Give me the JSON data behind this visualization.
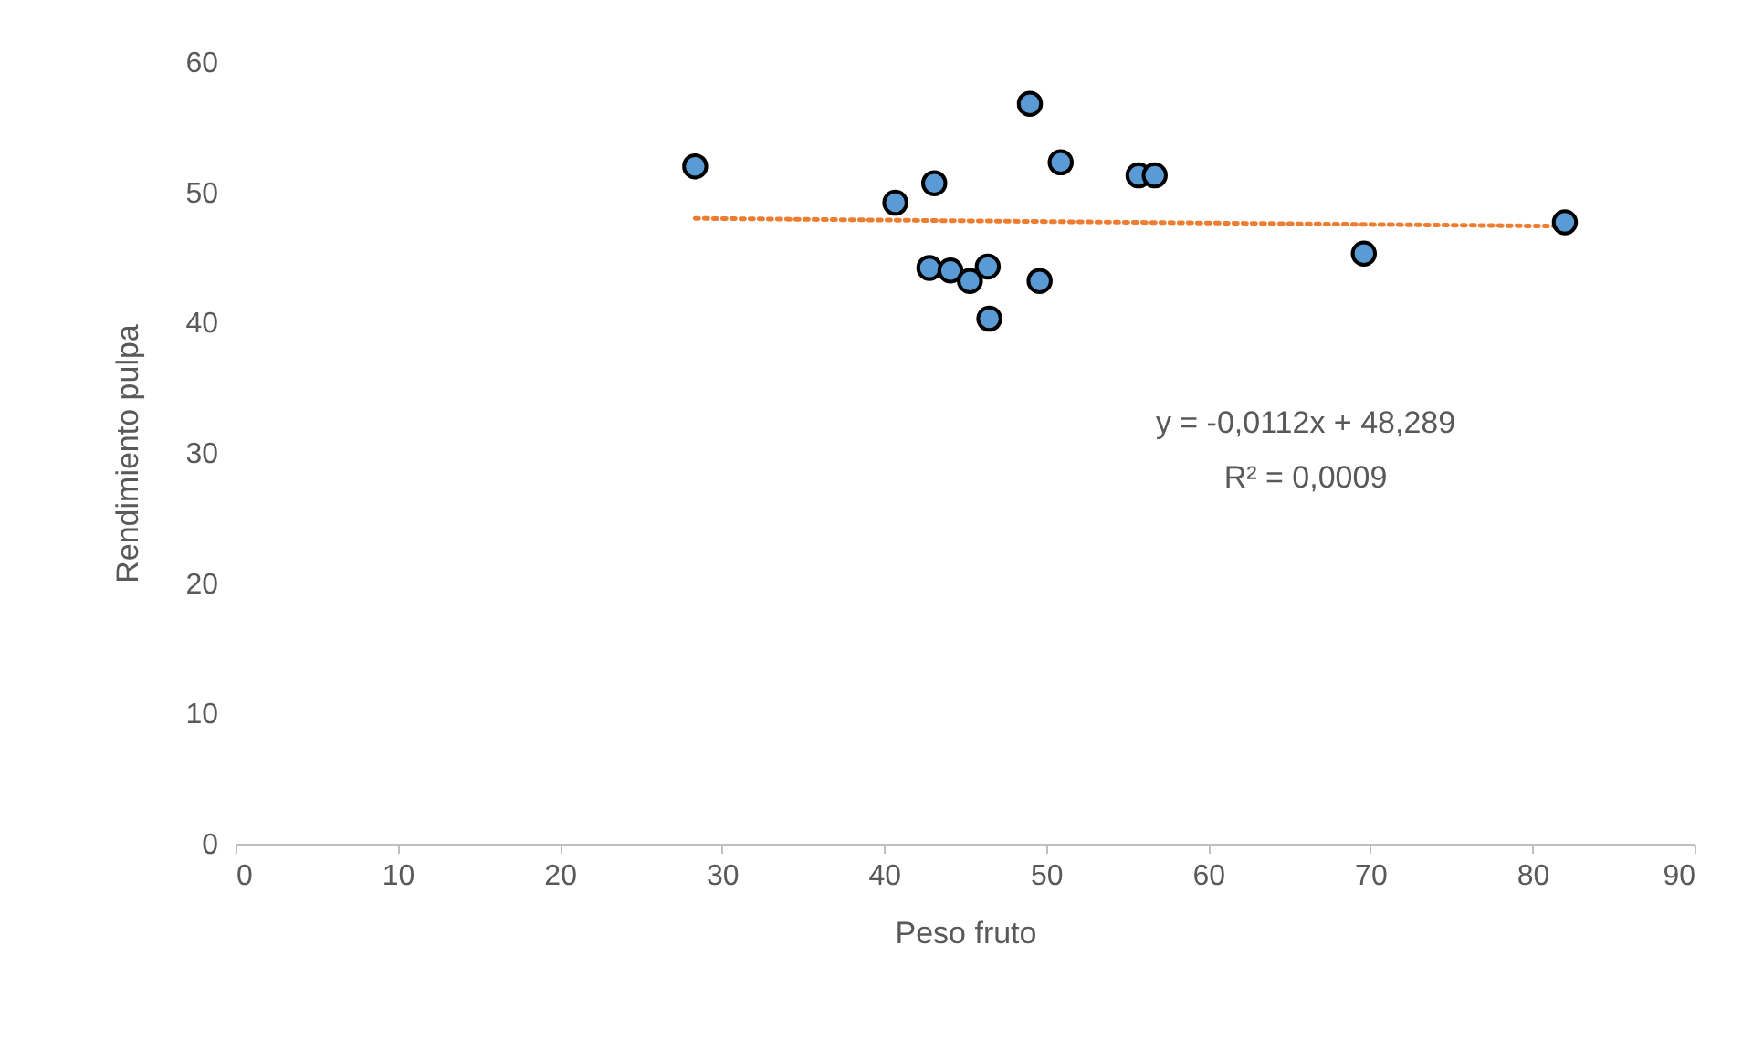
{
  "chart_data": {
    "type": "scatter",
    "xlabel": "Peso fruto",
    "ylabel": "Rendimiento pulpa",
    "xlim": [
      0,
      90
    ],
    "xticks": [
      0,
      10,
      20,
      30,
      40,
      50,
      60,
      70,
      80,
      90
    ],
    "ylim": [
      0,
      60
    ],
    "yticks": [
      0,
      10,
      20,
      30,
      40,
      50,
      60
    ],
    "annotations": [
      "y = -0,0112x + 48,289",
      "R² = 0,0009"
    ],
    "series": [
      {
        "color": "#5b9bd5",
        "marker": "circle",
        "x": [
          28.35,
          40.7,
          43.1,
          42.8,
          44.1,
          45.3,
          46.4,
          46.5,
          49.0,
          49.6,
          50.9,
          55.7,
          56.7,
          69.6,
          82.0
        ],
        "values": [
          52.0,
          49.2,
          50.7,
          44.2,
          44.0,
          43.2,
          44.3,
          40.3,
          56.8,
          43.2,
          52.3,
          51.3,
          51.3,
          45.3,
          47.7
        ]
      },
      {
        "type": "line",
        "color": "#ed7d31",
        "line_style": "dotted",
        "marker": "none",
        "x": [
          28.35,
          82.0
        ],
        "values": [
          48.0,
          47.4
        ]
      }
    ]
  }
}
